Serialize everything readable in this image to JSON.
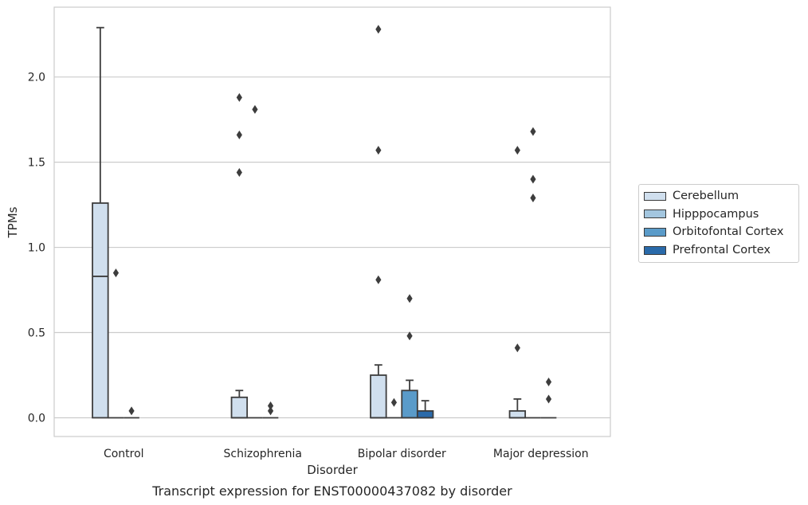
{
  "chart_data": {
    "type": "box",
    "caption": "Transcript expression for ENST00000437082 by disorder",
    "xlabel": "Disorder",
    "ylabel": "TPMs",
    "ylim": [
      -0.11,
      2.41
    ],
    "yticks": [
      0.0,
      0.5,
      1.0,
      1.5,
      2.0
    ],
    "ytick_labels": [
      "0.0",
      "0.5",
      "1.0",
      "1.5",
      "2.0"
    ],
    "grid": "horizontal",
    "legend_position": "right",
    "categories": [
      "Control",
      "Schizophrenia",
      "Bipolar disorder",
      "Major depression"
    ],
    "series": [
      {
        "name": "Cerebellum",
        "color": "#d0dfee",
        "boxes": [
          {
            "q1": 0.0,
            "median": 0.83,
            "q3": 1.26,
            "whisker_low": 0.0,
            "whisker_high": 2.29,
            "outliers": []
          },
          {
            "q1": 0.0,
            "median": 0.0,
            "q3": 0.12,
            "whisker_low": 0.0,
            "whisker_high": 0.16,
            "outliers": [
              1.44,
              1.66,
              1.88
            ]
          },
          {
            "q1": 0.0,
            "median": 0.0,
            "q3": 0.25,
            "whisker_low": 0.0,
            "whisker_high": 0.31,
            "outliers": [
              0.81,
              1.57,
              2.28
            ]
          },
          {
            "q1": 0.0,
            "median": 0.0,
            "q3": 0.04,
            "whisker_low": 0.0,
            "whisker_high": 0.11,
            "outliers": [
              0.41,
              1.57
            ]
          }
        ]
      },
      {
        "name": "Hipppocampus",
        "color": "#a3c6df",
        "boxes": [
          {
            "q1": 0.0,
            "median": 0.0,
            "q3": 0.0,
            "whisker_low": 0.0,
            "whisker_high": 0.0,
            "outliers": [
              0.85
            ]
          },
          {
            "q1": 0.0,
            "median": 0.0,
            "q3": 0.0,
            "whisker_low": 0.0,
            "whisker_high": 0.0,
            "outliers": [
              1.81
            ]
          },
          {
            "q1": 0.0,
            "median": 0.0,
            "q3": 0.0,
            "whisker_low": 0.0,
            "whisker_high": 0.0,
            "outliers": [
              0.09
            ]
          },
          {
            "q1": 0.0,
            "median": 0.0,
            "q3": 0.0,
            "whisker_low": 0.0,
            "whisker_high": 0.0,
            "outliers": [
              1.29,
              1.4,
              1.68
            ]
          }
        ]
      },
      {
        "name": "Orbitofontal Cortex",
        "color": "#5a9bc9",
        "boxes": [
          {
            "q1": 0.0,
            "median": 0.0,
            "q3": 0.0,
            "whisker_low": 0.0,
            "whisker_high": 0.0,
            "outliers": [
              0.04
            ]
          },
          {
            "q1": 0.0,
            "median": 0.0,
            "q3": 0.0,
            "whisker_low": 0.0,
            "whisker_high": 0.0,
            "outliers": [
              0.04,
              0.07
            ]
          },
          {
            "q1": 0.0,
            "median": 0.0,
            "q3": 0.16,
            "whisker_low": 0.0,
            "whisker_high": 0.22,
            "outliers": [
              0.48,
              0.7
            ]
          },
          {
            "q1": 0.0,
            "median": 0.0,
            "q3": 0.0,
            "whisker_low": 0.0,
            "whisker_high": 0.0,
            "outliers": [
              0.11,
              0.21
            ]
          }
        ]
      },
      {
        "name": "Prefrontal Cortex",
        "color": "#2a6aaa",
        "boxes": [
          null,
          null,
          {
            "q1": 0.0,
            "median": 0.0,
            "q3": 0.04,
            "whisker_low": 0.0,
            "whisker_high": 0.1,
            "outliers": []
          },
          null
        ]
      }
    ]
  }
}
